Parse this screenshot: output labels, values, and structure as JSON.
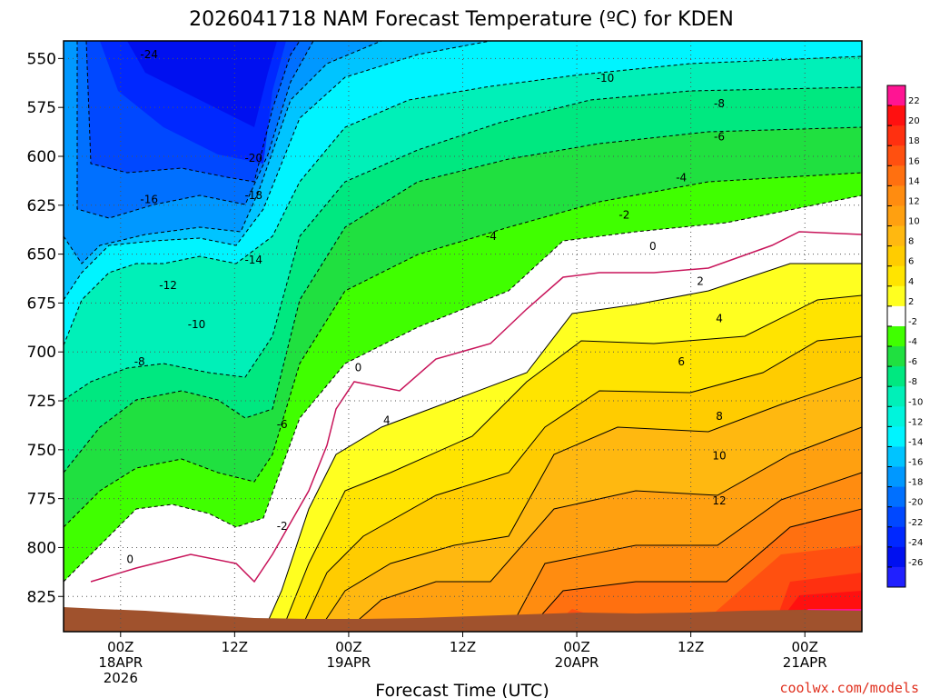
{
  "chart_data": {
    "type": "heatmap",
    "subtype": "time-height filled contour",
    "title": "2026041718 NAM Forecast Temperature (ºC) for KDEN",
    "xlabel": "Forecast Time (UTC)",
    "ylabel": "",
    "credit": "coolwx.com/models",
    "x_range_hours_since_18APR_00Z": [
      -6,
      78
    ],
    "x_ticks": [
      {
        "hour": 0,
        "lines": [
          "00Z",
          "18APR",
          "2026"
        ]
      },
      {
        "hour": 12,
        "lines": [
          "12Z"
        ]
      },
      {
        "hour": 24,
        "lines": [
          "00Z",
          "19APR"
        ]
      },
      {
        "hour": 36,
        "lines": [
          "12Z"
        ]
      },
      {
        "hour": 48,
        "lines": [
          "00Z",
          "20APR"
        ]
      },
      {
        "hour": 60,
        "lines": [
          "12Z"
        ]
      },
      {
        "hour": 72,
        "lines": [
          "00Z",
          "21APR"
        ]
      }
    ],
    "y_range_hPa": [
      843,
      541
    ],
    "y_ticks": [
      550,
      575,
      600,
      625,
      650,
      675,
      700,
      725,
      750,
      775,
      800,
      825
    ],
    "y_scale": "inverted pressure",
    "grid": true,
    "colorbar": {
      "placement": "right",
      "ticks": [
        22,
        20,
        18,
        16,
        14,
        12,
        10,
        8,
        6,
        4,
        2,
        -2,
        -4,
        -6,
        -8,
        -10,
        -12,
        -14,
        -16,
        -18,
        -20,
        -22,
        -24,
        -26
      ],
      "colors": [
        "#ff1493",
        "#ff1010",
        "#ff3010",
        "#ff5010",
        "#ff7010",
        "#ff8c10",
        "#ffa010",
        "#ffb810",
        "#ffcc00",
        "#ffe400",
        "#ffff20",
        "#ffffff",
        "#40ff00",
        "#20e040",
        "#00e880",
        "#00f0b8",
        "#00f4dc",
        "#00f4ff",
        "#00c4ff",
        "#0098ff",
        "#0070ff",
        "#0048ff",
        "#0028ff",
        "#0010f0",
        "#2020ff"
      ]
    },
    "contour_interval": 2,
    "contour_labels": [
      {
        "value": -24,
        "hour": 3,
        "hPa": 548
      },
      {
        "value": -20,
        "hour": 14,
        "hPa": 601
      },
      {
        "value": -18,
        "hour": 14,
        "hPa": 620
      },
      {
        "value": -16,
        "hour": 3,
        "hPa": 622
      },
      {
        "value": -14,
        "hour": 14,
        "hPa": 653
      },
      {
        "value": -12,
        "hour": 5,
        "hPa": 666
      },
      {
        "value": -10,
        "hour": 8,
        "hPa": 686
      },
      {
        "value": -10,
        "hour": 51,
        "hPa": 560
      },
      {
        "value": -8,
        "hour": 2,
        "hPa": 705
      },
      {
        "value": -8,
        "hour": 63,
        "hPa": 573
      },
      {
        "value": -6,
        "hour": 17,
        "hPa": 737
      },
      {
        "value": -6,
        "hour": 63,
        "hPa": 590
      },
      {
        "value": -4,
        "hour": 39,
        "hPa": 641
      },
      {
        "value": -4,
        "hour": 59,
        "hPa": 611
      },
      {
        "value": -2,
        "hour": 17,
        "hPa": 789
      },
      {
        "value": -2,
        "hour": 53,
        "hPa": 630
      },
      {
        "value": 0,
        "hour": 1,
        "hPa": 806
      },
      {
        "value": 0,
        "hour": 25,
        "hPa": 708
      },
      {
        "value": 0,
        "hour": 56,
        "hPa": 646
      },
      {
        "value": 2,
        "hour": 61,
        "hPa": 664
      },
      {
        "value": 4,
        "hour": 28,
        "hPa": 735
      },
      {
        "value": 4,
        "hour": 63,
        "hPa": 683
      },
      {
        "value": 6,
        "hour": 59,
        "hPa": 705
      },
      {
        "value": 8,
        "hour": 63,
        "hPa": 733
      },
      {
        "value": 10,
        "hour": 63,
        "hPa": 753
      },
      {
        "value": 12,
        "hour": 63,
        "hPa": 776
      }
    ]
  }
}
